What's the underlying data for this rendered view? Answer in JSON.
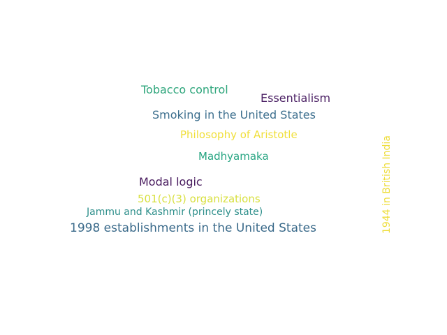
{
  "words": [
    {
      "text": "Tobacco control",
      "color": "#2fa67c"
    },
    {
      "text": "Essentialism",
      "color": "#4a1f63"
    },
    {
      "text": "Smoking in the United States",
      "color": "#3d6f8e"
    },
    {
      "text": "Philosophy of Aristotle",
      "color": "#f0df3a"
    },
    {
      "text": "Madhyamaka",
      "color": "#27a582"
    },
    {
      "text": "Modal logic",
      "color": "#481b5e"
    },
    {
      "text": "501(c)(3) organizations",
      "color": "#d8e040"
    },
    {
      "text": "Jammu and Kashmir (princely state)",
      "color": "#2c8e8a"
    },
    {
      "text": "1998 establishments in the United States",
      "color": "#3a6a8a"
    },
    {
      "text": "1944 in British India",
      "color": "#eedd3a"
    }
  ]
}
